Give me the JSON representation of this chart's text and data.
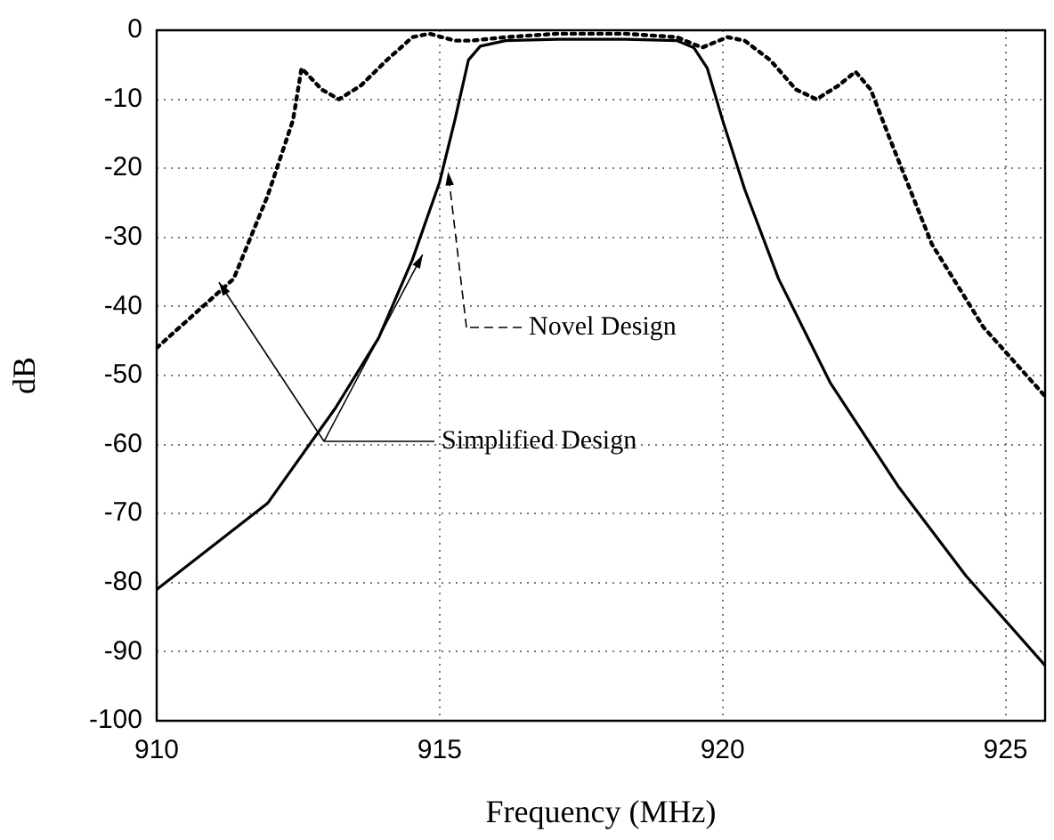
{
  "chart_data": {
    "type": "line",
    "xlabel": "Frequency (MHz)",
    "ylabel": "dB",
    "xlim": [
      910,
      925.7
    ],
    "xticks": [
      910,
      915,
      920,
      925
    ],
    "ylim": [
      -100,
      0
    ],
    "yticks": [
      0,
      -10,
      -20,
      -30,
      -40,
      -50,
      -60,
      -70,
      -80,
      -90,
      -100
    ],
    "grid": true,
    "legend": "center",
    "marker": "none",
    "series": [
      {
        "name": "Novel Design",
        "color": "#000000",
        "line_style": "dotted",
        "x": [
          910,
          911.36,
          911.96,
          912.41,
          912.56,
          912.92,
          913.22,
          913.61,
          914.07,
          914.52,
          914.82,
          915.27,
          915.57,
          916.17,
          917.08,
          918.28,
          919.19,
          919.64,
          920.09,
          920.39,
          920.84,
          921.3,
          921.66,
          922.05,
          922.35,
          922.62,
          922.95,
          923.7,
          924.61,
          925.7
        ],
        "values": [
          -46,
          -36,
          -24,
          -13,
          -5.5,
          -8.6,
          -10,
          -8,
          -4.3,
          -1,
          -0.5,
          -1.5,
          -1.5,
          -1,
          -0.5,
          -0.5,
          -1,
          -2.5,
          -1,
          -1.5,
          -4.3,
          -8.6,
          -10,
          -8,
          -6,
          -8.6,
          -15.6,
          -31,
          -43,
          -53
        ]
      },
      {
        "name": "Simplified Design",
        "color": "#000000",
        "line_style": "solid",
        "x": [
          910,
          911.96,
          913.16,
          913.92,
          914.52,
          915,
          915.27,
          915.51,
          915.72,
          916.17,
          917.08,
          918.28,
          919.19,
          919.49,
          919.73,
          920,
          920.39,
          920.99,
          921.9,
          923.1,
          924.3,
          925.7
        ],
        "values": [
          -81,
          -68.5,
          -54.7,
          -44.6,
          -33.2,
          -22,
          -13,
          -4.3,
          -2.3,
          -1.5,
          -1.3,
          -1.3,
          -1.5,
          -2.5,
          -5.5,
          -13,
          -23,
          -36,
          -51,
          -66,
          -79,
          -92
        ]
      }
    ]
  }
}
